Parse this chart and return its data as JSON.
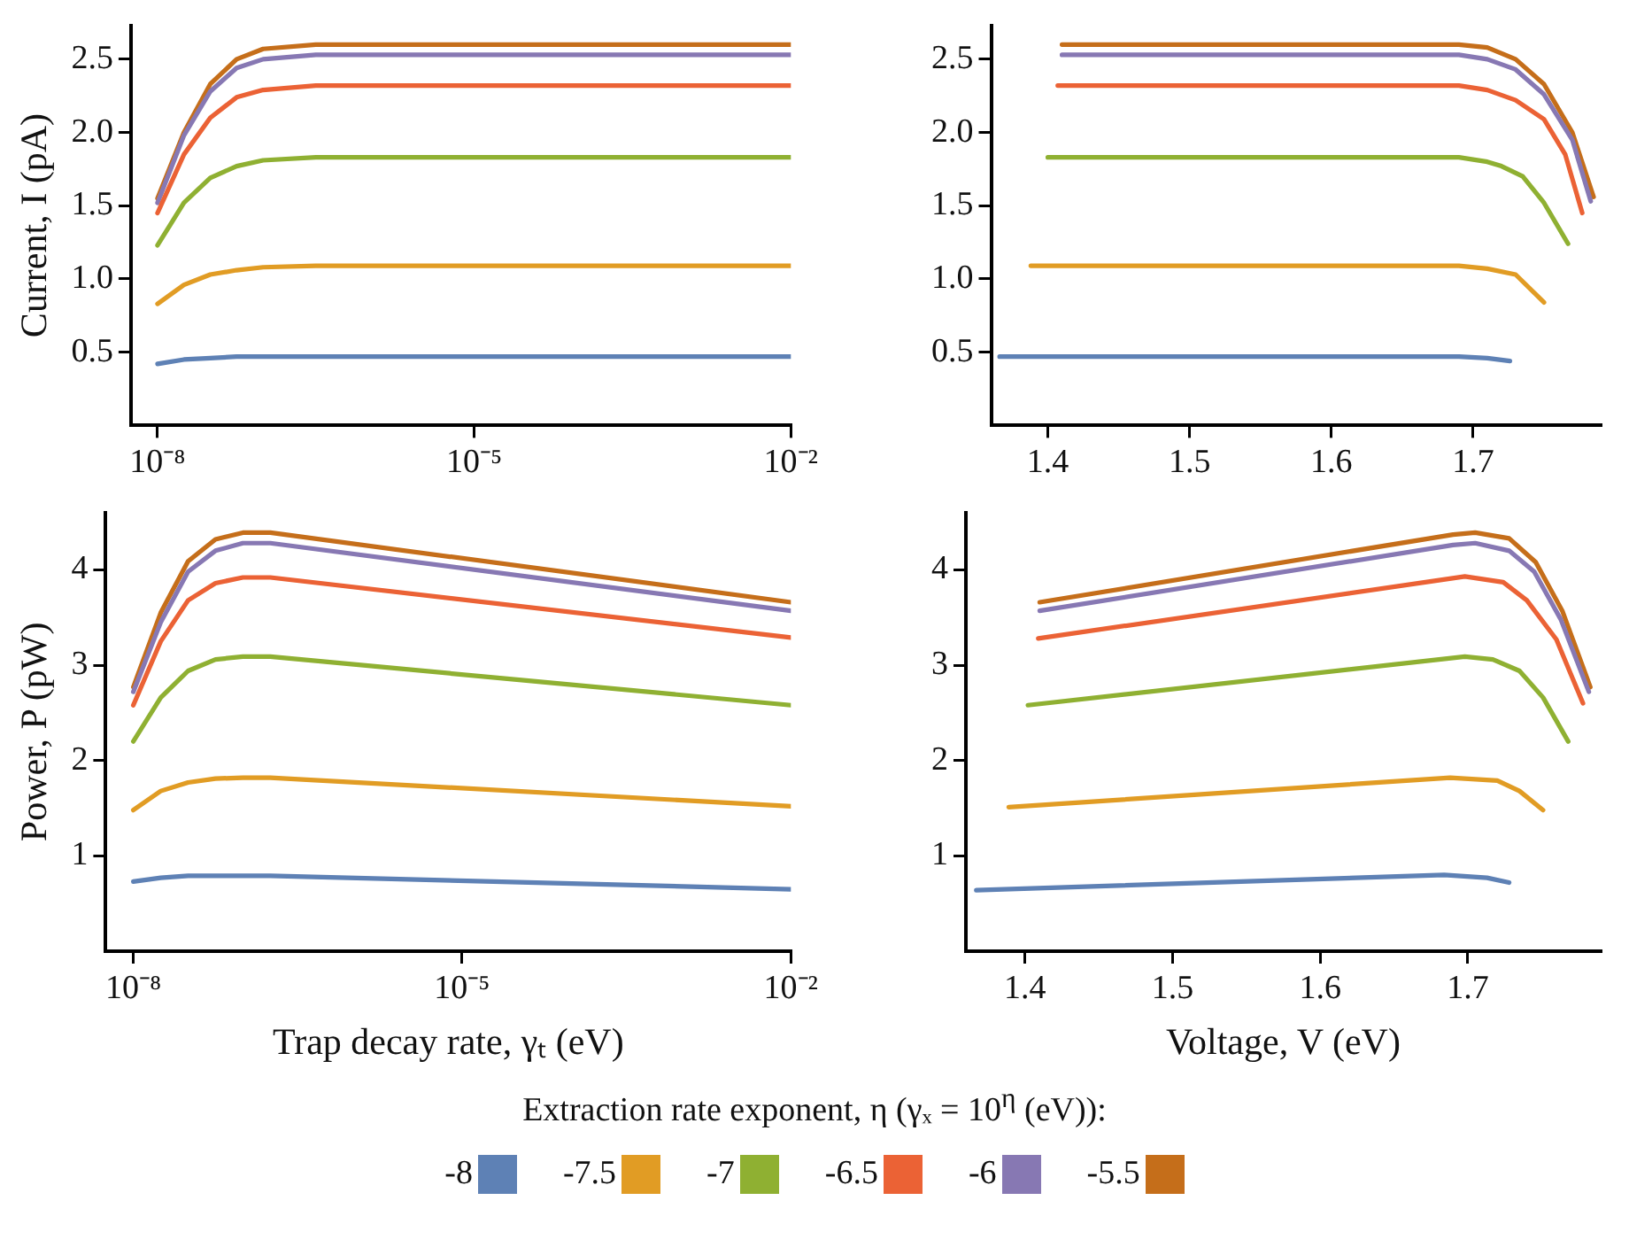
{
  "chart_data": [
    {
      "type": "line",
      "ylabel": "Current, I (pA)",
      "log": "x",
      "xlim": [
        5.6e-09,
        0.01
      ],
      "xticks": [
        {
          "value": 1e-08,
          "label": "10⁻⁸"
        },
        {
          "value": 1e-05,
          "label": "10⁻⁵"
        },
        {
          "value": 0.01,
          "label": "10⁻²"
        }
      ],
      "ylim": [
        0,
        2.73
      ],
      "yticks": [
        {
          "value": 0.5,
          "label": "0.5"
        },
        {
          "value": 1,
          "label": "1.0"
        },
        {
          "value": 1.5,
          "label": "1.5"
        },
        {
          "value": 2,
          "label": "2.0"
        },
        {
          "value": 2.5,
          "label": "2.5"
        }
      ],
      "grid": false,
      "legend": "bottom",
      "legend_title": "Extraction rate exponent, η (γₓ  = 10$^{η}$ (eV)):",
      "x": [
        1e-08,
        1.78e-08,
        3.16e-08,
        5.62e-08,
        1e-07,
        3.16e-07,
        1e-06,
        0.01
      ],
      "series": [
        {
          "name": "-8",
          "color": "#5e81b5",
          "values": [
            0.42,
            0.45,
            0.46,
            0.47,
            0.47,
            0.47,
            0.47,
            0.47
          ]
        },
        {
          "name": "-7.5",
          "color": "#e19c24",
          "values": [
            0.83,
            0.96,
            1.03,
            1.06,
            1.08,
            1.09,
            1.09,
            1.09
          ]
        },
        {
          "name": "-7",
          "color": "#8fb032",
          "values": [
            1.23,
            1.52,
            1.69,
            1.77,
            1.81,
            1.83,
            1.83,
            1.83
          ]
        },
        {
          "name": "-6.5",
          "color": "#eb6235",
          "values": [
            1.45,
            1.85,
            2.1,
            2.24,
            2.29,
            2.32,
            2.32,
            2.32
          ]
        },
        {
          "name": "-6",
          "color": "#8778b3",
          "values": [
            1.52,
            1.98,
            2.28,
            2.44,
            2.5,
            2.53,
            2.53,
            2.53
          ]
        },
        {
          "name": "-5.5",
          "color": "#c56e1a",
          "values": [
            1.55,
            2.0,
            2.33,
            2.5,
            2.57,
            2.6,
            2.6,
            2.6
          ]
        }
      ]
    },
    {
      "type": "line",
      "xlim": [
        1.36,
        1.79
      ],
      "xticks": [
        {
          "value": 1.4,
          "label": "1.4"
        },
        {
          "value": 1.5,
          "label": "1.5"
        },
        {
          "value": 1.6,
          "label": "1.6"
        },
        {
          "value": 1.7,
          "label": "1.7"
        }
      ],
      "ylim": [
        0,
        2.73
      ],
      "yticks": [
        {
          "value": 0.5,
          "label": "0.5"
        },
        {
          "value": 1,
          "label": "1.0"
        },
        {
          "value": 1.5,
          "label": "1.5"
        },
        {
          "value": 2,
          "label": "2.0"
        },
        {
          "value": 2.5,
          "label": "2.5"
        }
      ],
      "grid": false,
      "series": [
        {
          "name": "-8",
          "color": "#5e81b5",
          "x": [
            1.366,
            1.69,
            1.71,
            1.726
          ],
          "values": [
            0.47,
            0.47,
            0.46,
            0.44
          ]
        },
        {
          "name": "-7.5",
          "color": "#e19c24",
          "x": [
            1.388,
            1.69,
            1.71,
            1.73,
            1.75
          ],
          "values": [
            1.09,
            1.09,
            1.07,
            1.03,
            0.84
          ]
        },
        {
          "name": "-7",
          "color": "#8fb032",
          "x": [
            1.4,
            1.69,
            1.71,
            1.72,
            1.735,
            1.75,
            1.767
          ],
          "values": [
            1.83,
            1.83,
            1.8,
            1.77,
            1.7,
            1.52,
            1.24
          ]
        },
        {
          "name": "-6.5",
          "color": "#eb6235",
          "x": [
            1.407,
            1.69,
            1.71,
            1.73,
            1.75,
            1.765,
            1.777
          ],
          "values": [
            2.32,
            2.32,
            2.29,
            2.22,
            2.09,
            1.85,
            1.45
          ]
        },
        {
          "name": "-6",
          "color": "#8778b3",
          "x": [
            1.41,
            1.69,
            1.71,
            1.73,
            1.75,
            1.77,
            1.783
          ],
          "values": [
            2.53,
            2.53,
            2.5,
            2.43,
            2.26,
            1.95,
            1.53
          ]
        },
        {
          "name": "-5.5",
          "color": "#c56e1a",
          "x": [
            1.41,
            1.69,
            1.71,
            1.73,
            1.75,
            1.77,
            1.785
          ],
          "values": [
            2.6,
            2.6,
            2.58,
            2.5,
            2.33,
            2.0,
            1.56
          ]
        }
      ]
    },
    {
      "type": "line",
      "ylabel": "Power, P (pW)",
      "xlabel": "Trap decay rate, γₜ (eV)",
      "log": "x",
      "xlim": [
        5.6e-09,
        0.01
      ],
      "xticks": [
        {
          "value": 1e-08,
          "label": "10⁻⁸"
        },
        {
          "value": 1e-05,
          "label": "10⁻⁵"
        },
        {
          "value": 0.01,
          "label": "10⁻²"
        }
      ],
      "ylim": [
        0,
        4.6
      ],
      "yticks": [
        1,
        2,
        3,
        4
      ],
      "grid": false,
      "x": [
        1e-08,
        1.78e-08,
        3.16e-08,
        5.62e-08,
        1e-07,
        1.78e-07,
        0.01
      ],
      "series": [
        {
          "name": "-8",
          "color": "#5e81b5",
          "values": [
            0.73,
            0.77,
            0.79,
            0.79,
            0.79,
            0.79,
            0.65
          ]
        },
        {
          "name": "-7.5",
          "color": "#e19c24",
          "values": [
            1.48,
            1.68,
            1.77,
            1.81,
            1.82,
            1.82,
            1.52
          ]
        },
        {
          "name": "-7",
          "color": "#8fb032",
          "values": [
            2.2,
            2.66,
            2.94,
            3.06,
            3.09,
            3.09,
            2.58
          ]
        },
        {
          "name": "-6.5",
          "color": "#eb6235",
          "values": [
            2.58,
            3.25,
            3.68,
            3.86,
            3.92,
            3.92,
            3.29
          ]
        },
        {
          "name": "-6",
          "color": "#8778b3",
          "values": [
            2.72,
            3.45,
            3.98,
            4.2,
            4.28,
            4.28,
            3.57
          ]
        },
        {
          "name": "-5.5",
          "color": "#c56e1a",
          "values": [
            2.77,
            3.55,
            4.09,
            4.32,
            4.39,
            4.39,
            3.66
          ]
        }
      ]
    },
    {
      "type": "line",
      "xlabel": "Voltage, V (eV)",
      "xlim": [
        1.36,
        1.79
      ],
      "xticks": [
        {
          "value": 1.4,
          "label": "1.4"
        },
        {
          "value": 1.5,
          "label": "1.5"
        },
        {
          "value": 1.6,
          "label": "1.6"
        },
        {
          "value": 1.7,
          "label": "1.7"
        }
      ],
      "ylim": [
        0,
        4.6
      ],
      "yticks": [
        1,
        2,
        3,
        4
      ],
      "grid": false,
      "series": [
        {
          "name": "-8",
          "color": "#5e81b5",
          "x": [
            1.367,
            1.684,
            1.713,
            1.728
          ],
          "values": [
            0.64,
            0.8,
            0.77,
            0.72
          ]
        },
        {
          "name": "-7.5",
          "color": "#e19c24",
          "x": [
            1.389,
            1.688,
            1.72,
            1.735,
            1.751
          ],
          "values": [
            1.51,
            1.82,
            1.79,
            1.68,
            1.48
          ]
        },
        {
          "name": "-7",
          "color": "#8fb032",
          "x": [
            1.402,
            1.698,
            1.717,
            1.735,
            1.751,
            1.768
          ],
          "values": [
            2.58,
            3.09,
            3.06,
            2.94,
            2.66,
            2.2
          ]
        },
        {
          "name": "-6.5",
          "color": "#eb6235",
          "x": [
            1.409,
            1.698,
            1.724,
            1.74,
            1.76,
            1.778
          ],
          "values": [
            3.28,
            3.93,
            3.87,
            3.68,
            3.27,
            2.6
          ]
        },
        {
          "name": "-6",
          "color": "#8778b3",
          "x": [
            1.41,
            1.69,
            1.705,
            1.728,
            1.745,
            1.763,
            1.782
          ],
          "values": [
            3.57,
            4.26,
            4.28,
            4.2,
            3.98,
            3.48,
            2.72
          ]
        },
        {
          "name": "-5.5",
          "color": "#c56e1a",
          "x": [
            1.41,
            1.69,
            1.705,
            1.728,
            1.746,
            1.764,
            1.783
          ],
          "values": [
            3.66,
            4.37,
            4.39,
            4.33,
            4.08,
            3.57,
            2.77
          ]
        }
      ]
    }
  ]
}
